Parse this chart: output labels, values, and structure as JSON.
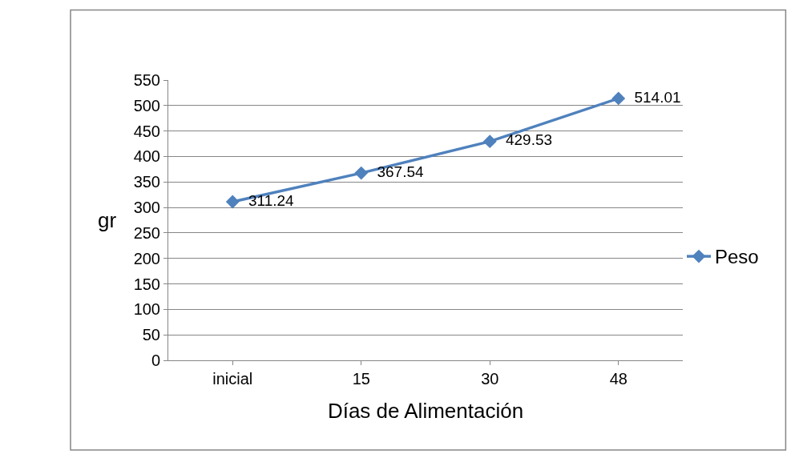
{
  "chart_data": {
    "type": "line",
    "xlabel": "Días de Alimentación",
    "ylabel": "gr",
    "categories": [
      "inicial",
      "15",
      "30",
      "48"
    ],
    "series": [
      {
        "name": "Peso",
        "color": "#4f81bd",
        "values": [
          311.24,
          367.54,
          429.53,
          514.01
        ]
      }
    ],
    "ylim": [
      0,
      550
    ],
    "yticks": [
      0,
      50,
      100,
      150,
      200,
      250,
      300,
      350,
      400,
      450,
      500,
      550
    ],
    "grid": "y",
    "legend": "right",
    "marker": "diamond",
    "line_style": "solid",
    "data_labels": true
  }
}
